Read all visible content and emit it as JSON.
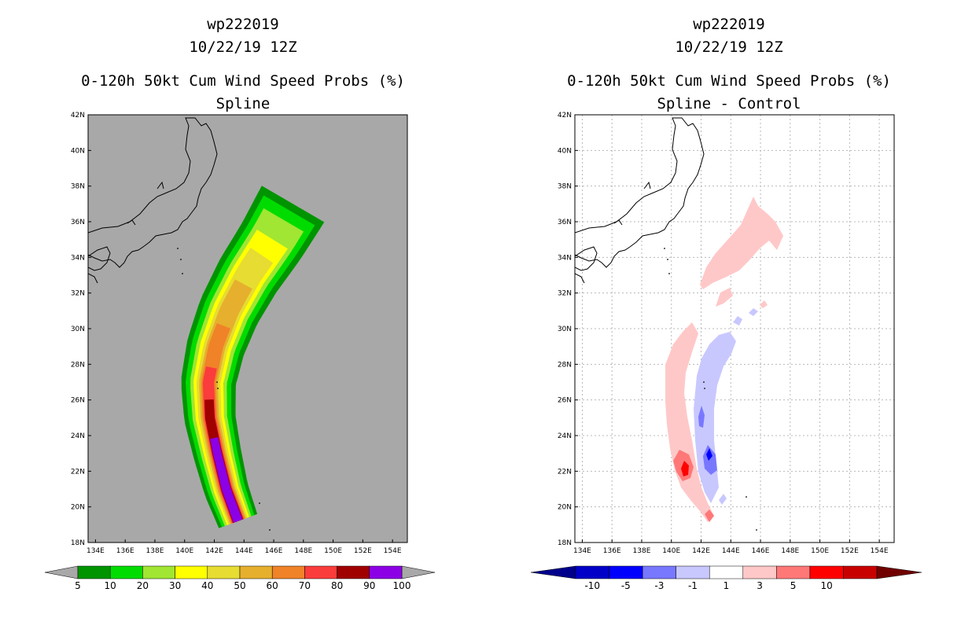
{
  "panels": [
    {
      "id": "left",
      "title_line1": "wp222019",
      "title_line2": "10/22/19 12Z",
      "title_line3": "0-120h 50kt Cum Wind Speed Probs (%)",
      "title_line4": "Spline"
    },
    {
      "id": "right",
      "title_line1": "wp222019",
      "title_line2": "10/22/19 12Z",
      "title_line3": "0-120h 50kt Cum Wind Speed Probs (%)",
      "title_line4": "Spline - Control"
    }
  ],
  "chart_data": [
    {
      "type": "heatmap",
      "subtype": "filled-contour map",
      "title": "0-120h 50kt Cum Wind Speed Probs (%)",
      "subtitle": "Spline",
      "storm": "wp222019",
      "valid": "10/22/19 12Z",
      "x_ticks": [
        "134E",
        "136E",
        "138E",
        "140E",
        "142E",
        "144E",
        "146E",
        "148E",
        "150E",
        "152E",
        "154E"
      ],
      "y_ticks": [
        "18N",
        "20N",
        "22N",
        "24N",
        "26N",
        "28N",
        "30N",
        "32N",
        "34N",
        "36N",
        "38N",
        "40N",
        "42N"
      ],
      "xlim": [
        133.5,
        155
      ],
      "ylim": [
        18,
        42
      ],
      "background_color": "#a8a8a8",
      "track_center": [
        [
          143.6,
          19.2
        ],
        [
          142.8,
          21
        ],
        [
          142.2,
          23
        ],
        [
          141.7,
          25
        ],
        [
          141.6,
          27
        ],
        [
          142.1,
          29
        ],
        [
          143,
          31
        ],
        [
          144.3,
          33
        ],
        [
          145.9,
          35
        ],
        [
          147.3,
          37
        ]
      ],
      "colorbar": {
        "levels": [
          "5",
          "10",
          "20",
          "30",
          "40",
          "50",
          "60",
          "70",
          "80",
          "90",
          "100"
        ],
        "colors": [
          "#009400",
          "#00dc00",
          "#a0e632",
          "#ffff00",
          "#e6dc32",
          "#e6af2d",
          "#f08228",
          "#fa3c3c",
          "#a00000",
          "#8c00e6"
        ],
        "extend_color": "#a8a8a8"
      }
    },
    {
      "type": "heatmap",
      "subtype": "filled-contour difference map",
      "title": "0-120h 50kt Cum Wind Speed Probs (%)",
      "subtitle": "Spline - Control",
      "storm": "wp222019",
      "valid": "10/22/19 12Z",
      "x_ticks": [
        "134E",
        "136E",
        "138E",
        "140E",
        "142E",
        "144E",
        "146E",
        "148E",
        "150E",
        "152E",
        "154E"
      ],
      "y_ticks": [
        "18N",
        "20N",
        "22N",
        "24N",
        "26N",
        "28N",
        "30N",
        "32N",
        "34N",
        "36N",
        "38N",
        "40N",
        "42N"
      ],
      "xlim": [
        133.5,
        155
      ],
      "ylim": [
        18,
        42
      ],
      "grid": true,
      "colorbar": {
        "levels": [
          "-10",
          "-5",
          "-3",
          "-1",
          "1",
          "3",
          "5",
          "10"
        ],
        "colors": [
          "#0000c8",
          "#0000ff",
          "#7878ff",
          "#c8c8ff",
          "#ffffff",
          "#ffc8c8",
          "#ff7878",
          "#ff0000",
          "#c80000"
        ],
        "extend_low_color": "#00008c",
        "extend_high_color": "#700000"
      }
    }
  ]
}
